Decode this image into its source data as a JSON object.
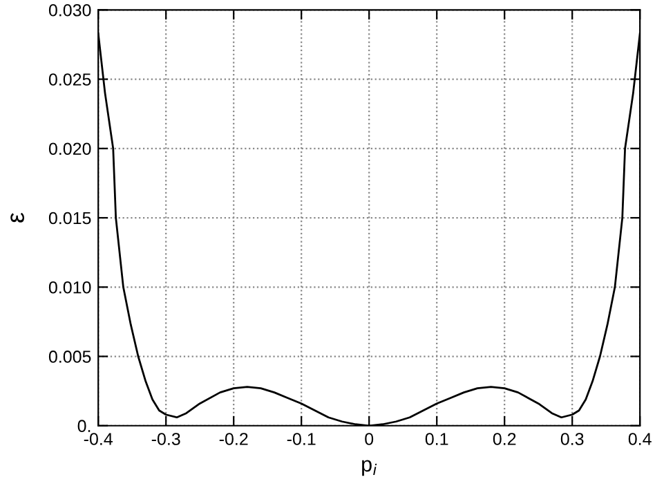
{
  "chart_data": {
    "type": "line",
    "xlabel": "p$_{i}$",
    "ylabel": "ε",
    "x": [
      -0.4,
      -0.39,
      -0.378,
      -0.374,
      -0.363,
      -0.352,
      -0.341,
      -0.33,
      -0.32,
      -0.31,
      -0.3,
      -0.284,
      -0.27,
      -0.25,
      -0.22,
      -0.2,
      -0.18,
      -0.16,
      -0.14,
      -0.12,
      -0.1,
      -0.08,
      -0.06,
      -0.04,
      -0.02,
      0,
      0.02,
      0.04,
      0.06,
      0.08,
      0.1,
      0.12,
      0.14,
      0.16,
      0.18,
      0.2,
      0.22,
      0.25,
      0.27,
      0.284,
      0.3,
      0.31,
      0.32,
      0.33,
      0.341,
      0.352,
      0.363,
      0.374,
      0.378,
      0.39,
      0.4
    ],
    "series": [
      {
        "color": "#000000",
        "values": [
          0.0283,
          0.024,
          0.02,
          0.015,
          0.01,
          0.0073,
          0.005,
          0.0032,
          0.0019,
          0.0011,
          0.0008,
          0.0006,
          0.0009,
          0.0016,
          0.0024,
          0.0027,
          0.0028,
          0.0027,
          0.0024,
          0.002,
          0.0016,
          0.0011,
          0.0006,
          0.0003,
          0.0001,
          0.0,
          0.0001,
          0.0003,
          0.0006,
          0.0011,
          0.0016,
          0.002,
          0.0024,
          0.0027,
          0.0028,
          0.0027,
          0.0024,
          0.0016,
          0.0009,
          0.0006,
          0.0008,
          0.0011,
          0.0019,
          0.0032,
          0.005,
          0.0073,
          0.01,
          0.015,
          0.02,
          0.024,
          0.0283
        ]
      }
    ],
    "xlim": [
      -0.4,
      0.4
    ],
    "ylim": [
      0,
      0.03
    ],
    "xticks": [
      -0.4,
      -0.3,
      -0.2,
      -0.1,
      0,
      0.1,
      0.2,
      0.3,
      0.4
    ],
    "yticks": [
      {
        "value": 0,
        "label": "0."
      },
      0.005,
      {
        "value": 0.01,
        "label": "0.010"
      },
      0.015,
      {
        "value": 0.02,
        "label": "0.020"
      },
      0.025,
      {
        "value": 0.03,
        "label": "0.030"
      }
    ],
    "grid": true,
    "marker": "none",
    "line_style": "solid"
  }
}
